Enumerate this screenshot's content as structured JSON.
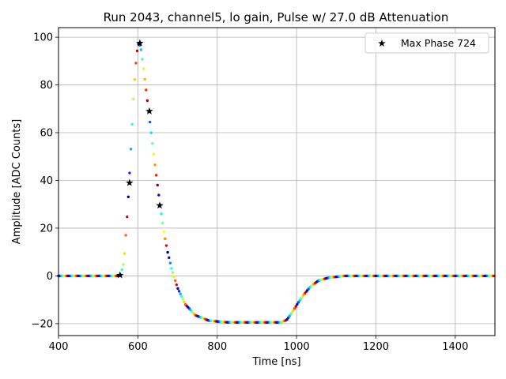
{
  "chart_data": {
    "type": "scatter",
    "title": "Run 2043, channel5, lo gain, Pulse w/ 27.0 dB Attenuation",
    "xlabel": "Time [ns]",
    "ylabel": "Amplitude [ADC Counts]",
    "xlim": [
      400,
      1500
    ],
    "ylim": [
      -25,
      104
    ],
    "xticks": [
      400,
      600,
      800,
      1000,
      1200,
      1400
    ],
    "yticks": [
      -20,
      0,
      20,
      40,
      60,
      80,
      100
    ],
    "grid": true,
    "legend_position": "top-right",
    "pulse_shape": {
      "t": [
        400,
        550,
        557,
        565,
        575,
        583,
        590,
        597,
        602,
        607,
        615,
        625,
        635,
        645,
        655,
        665,
        675,
        685,
        700,
        720,
        745,
        780,
        830,
        900,
        960,
        975,
        990,
        1005,
        1020,
        1035,
        1055,
        1080,
        1120,
        1200,
        1500
      ],
      "amplitude": [
        0,
        0,
        0.5,
        6,
        30,
        55,
        78,
        93,
        97.5,
        96,
        86,
        72,
        58,
        44,
        31,
        19,
        10,
        3,
        -5,
        -12,
        -16.5,
        -18.8,
        -19.5,
        -19.5,
        -19.5,
        -18.5,
        -15,
        -11,
        -7.5,
        -4.5,
        -2,
        -0.8,
        0,
        0,
        0
      ]
    },
    "colored_points": {
      "colormap": "jet",
      "sample_spacing_ns": 3.2,
      "hue_cycle_ns": 25
    },
    "series": [
      {
        "name": "Max Phase 724",
        "marker": "star",
        "color": "#000000",
        "x": [
          555,
          579,
          605,
          629,
          655
        ],
        "y": [
          0.3,
          39,
          97.5,
          69,
          29.5
        ]
      }
    ]
  }
}
